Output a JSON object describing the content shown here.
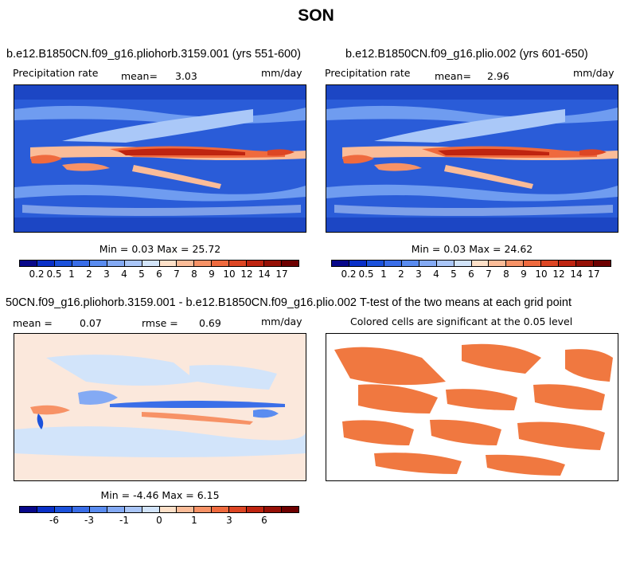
{
  "figure": {
    "title": "SON"
  },
  "panels": [
    {
      "id": "ctl",
      "title": "b.e12.B1850CN.f09_g16.pliohorb.3159.001 (yrs 551-600)",
      "left_label": "Precipitation rate",
      "mean_label": "mean=",
      "mean_value": "3.03",
      "units": "mm/day",
      "min_label": "Min =",
      "min_value": "0.03",
      "max_label": "Max =",
      "max_value": "25.72"
    },
    {
      "id": "exp",
      "title": "b.e12.B1850CN.f09_g16.plio.002 (yrs 601-650)",
      "left_label": "Precipitation rate",
      "mean_label": "mean=",
      "mean_value": "2.96",
      "units": "mm/day",
      "min_label": "Min =",
      "min_value": "0.03",
      "max_label": "Max =",
      "max_value": "24.62"
    },
    {
      "id": "diff",
      "title": "50CN.f09_g16.pliohorb.3159.001 - b.e12.B1850CN.f09_g16.plio.002",
      "mean_label": "mean =",
      "mean_value": "0.07",
      "rmse_label": "rmse =",
      "rmse_value": "0.69",
      "units": "mm/day",
      "min_label": "Min =",
      "min_value": "-4.46",
      "max_label": "Max =",
      "max_value": "6.15"
    },
    {
      "id": "ttest",
      "title": "T-test of the two means at each grid point",
      "subtitle": "Colored cells are significant at the 0.05 level",
      "significant_color": "#F07840"
    }
  ],
  "chart_data": [
    {
      "type": "heatmap",
      "title": "b.e12.B1850CN.f09_g16.pliohorb.3159.001 (yrs 551-600)",
      "variable": "Precipitation rate",
      "units": "mm/day",
      "mean": 3.03,
      "min": 0.03,
      "max": 25.72,
      "colorbar_levels": [
        "0.2",
        "0.5",
        "1",
        "2",
        "3",
        "4",
        "5",
        "6",
        "7",
        "8",
        "9",
        "10",
        "12",
        "14",
        "17"
      ]
    },
    {
      "type": "heatmap",
      "title": "b.e12.B1850CN.f09_g16.plio.002 (yrs 601-650)",
      "variable": "Precipitation rate",
      "units": "mm/day",
      "mean": 2.96,
      "min": 0.03,
      "max": 24.62,
      "colorbar_levels": [
        "0.2",
        "0.5",
        "1",
        "2",
        "3",
        "4",
        "5",
        "6",
        "7",
        "8",
        "9",
        "10",
        "12",
        "14",
        "17"
      ]
    },
    {
      "type": "heatmap",
      "title": "50CN.f09_g16.pliohorb.3159.001 - b.e12.B1850CN.f09_g16.plio.002",
      "units": "mm/day",
      "mean": 0.07,
      "rmse": 0.69,
      "min": -4.46,
      "max": 6.15,
      "colorbar_labels": [
        "-6",
        "-3",
        "-1",
        "0",
        "1",
        "3",
        "6"
      ]
    },
    {
      "type": "heatmap",
      "title": "T-test of the two means at each grid point",
      "note": "Colored cells are significant at the 0.05 level"
    }
  ],
  "colorbars": {
    "precip_colors": [
      "#08088a",
      "#0a30c8",
      "#1c52dc",
      "#3a6ee8",
      "#5a8cf0",
      "#84aaf4",
      "#aac6f8",
      "#d2e4fa",
      "#fde0c8",
      "#fbbc98",
      "#f79266",
      "#ef6a3e",
      "#dd4624",
      "#bf2410",
      "#961006",
      "#6e0000"
    ],
    "precip_labels": [
      "0.2",
      "0.5",
      "1",
      "2",
      "3",
      "4",
      "5",
      "6",
      "7",
      "8",
      "9",
      "10",
      "12",
      "14",
      "17"
    ],
    "diff_colors": [
      "#08088a",
      "#0a30c8",
      "#1c52dc",
      "#3a6ee8",
      "#5a8cf0",
      "#84aaf4",
      "#aac6f8",
      "#d2e4fa",
      "#fde0c8",
      "#fbbc98",
      "#f79266",
      "#ef6a3e",
      "#dd4624",
      "#bf2410",
      "#961006",
      "#6e0000"
    ],
    "diff_labels": [
      "-6",
      "-3",
      "-1",
      "0",
      "1",
      "3",
      "6"
    ]
  }
}
